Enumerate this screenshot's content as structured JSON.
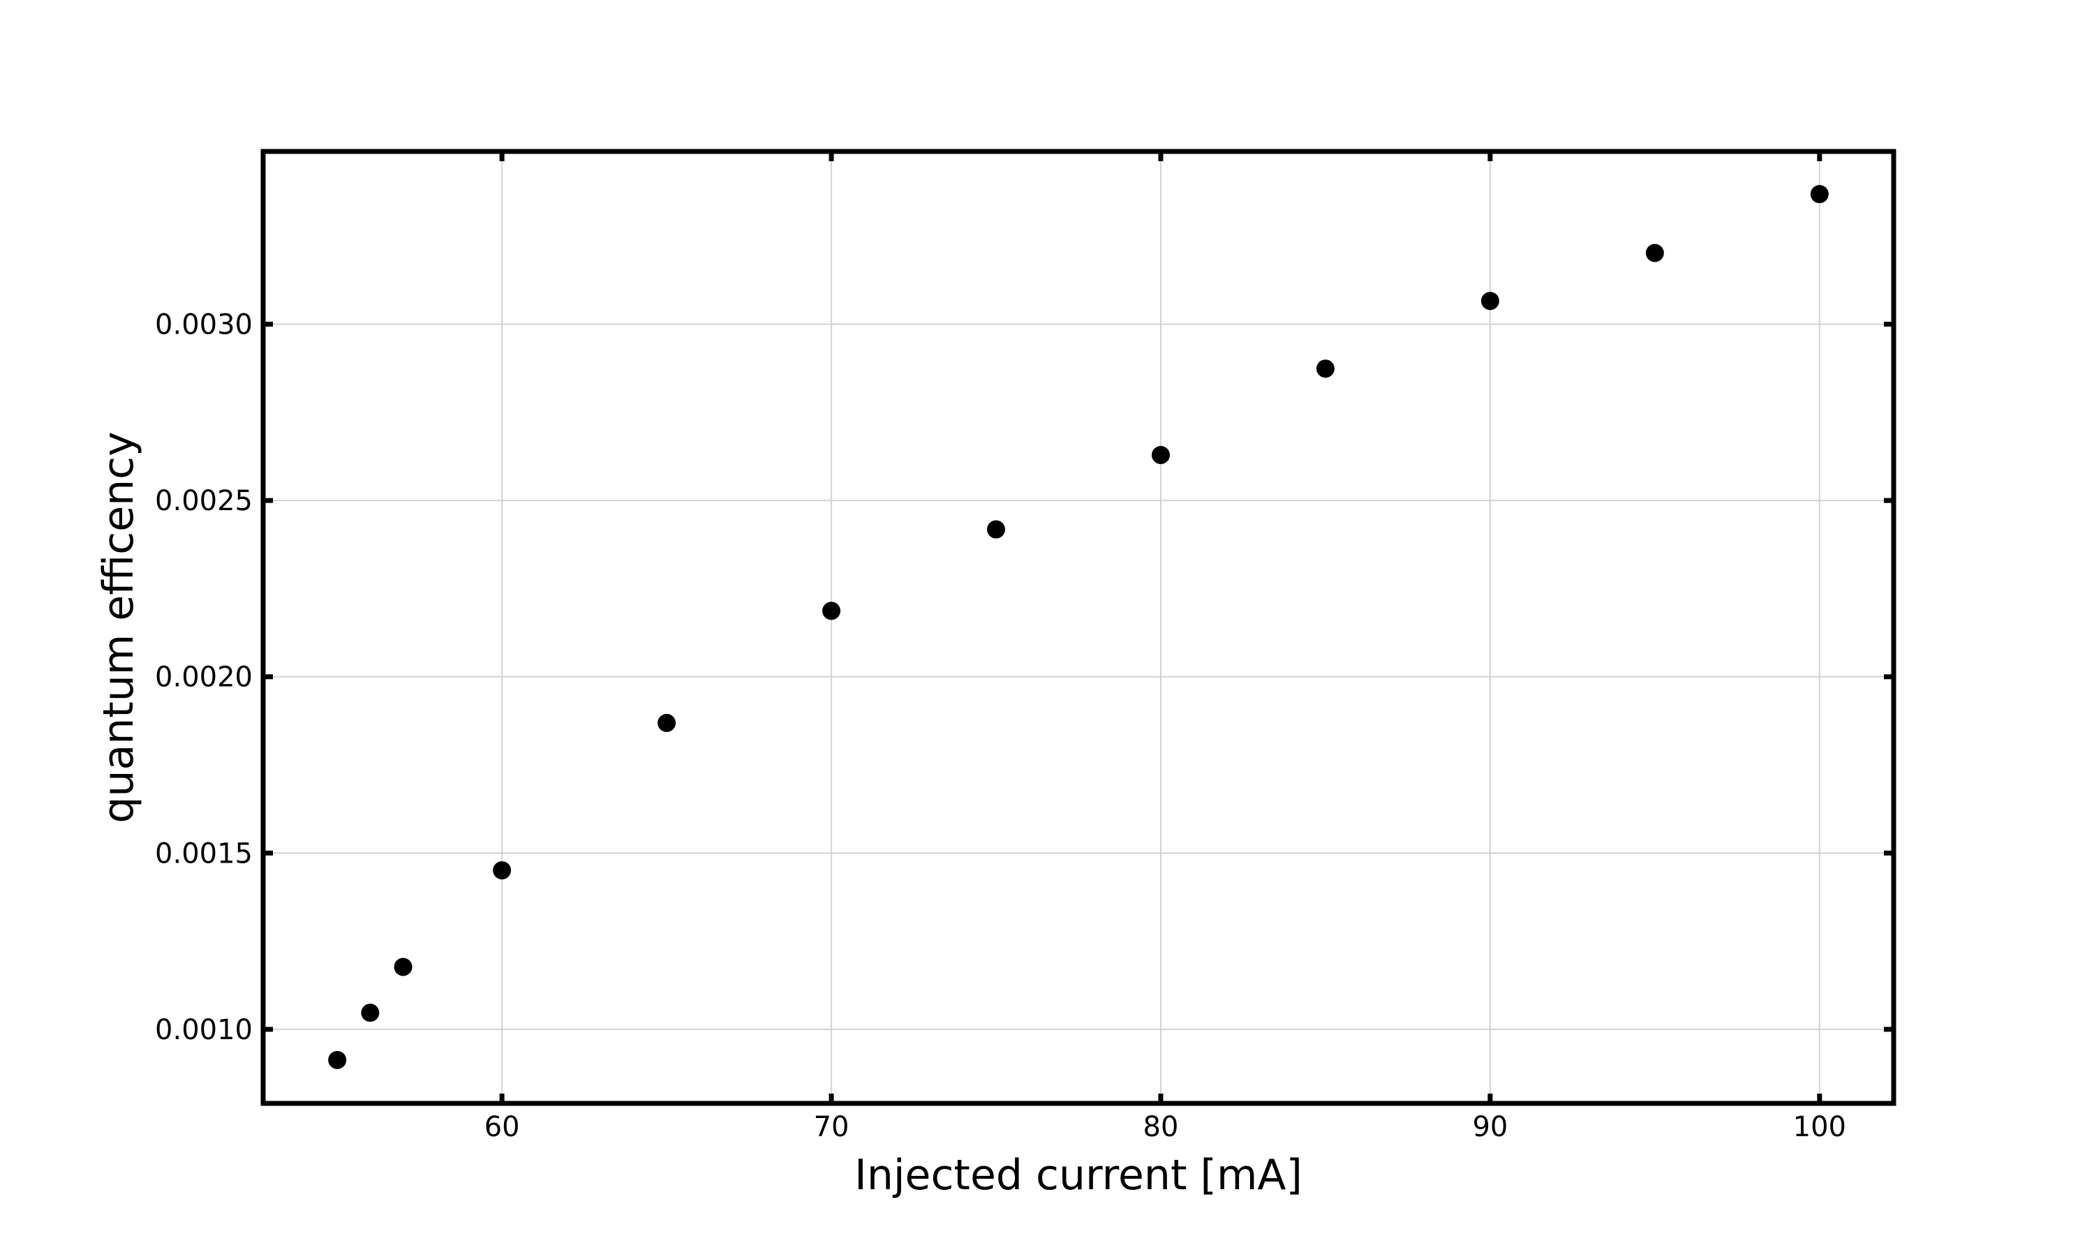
{
  "chart_data": {
    "type": "scatter",
    "title": "",
    "xlabel": "Injected current [mA]",
    "ylabel": "quantum efficency",
    "xlim": [
      52.75,
      102.25
    ],
    "ylim": [
      0.00079,
      0.00349
    ],
    "xticks": [
      60,
      70,
      80,
      90,
      100
    ],
    "xtick_labels": [
      "60",
      "70",
      "80",
      "90",
      "100"
    ],
    "yticks": [
      0.001,
      0.0015,
      0.002,
      0.0025,
      0.003
    ],
    "ytick_labels": [
      "0.0010",
      "0.0015",
      "0.0020",
      "0.0025",
      "0.0030"
    ],
    "grid": true,
    "series": [
      {
        "name": "quantum efficiency",
        "color": "#000000",
        "x": [
          55,
          56,
          57,
          60,
          65,
          70,
          75,
          80,
          85,
          90,
          95,
          100
        ],
        "y": [
          0.000913,
          0.001047,
          0.001177,
          0.001451,
          0.001869,
          0.002187,
          0.002418,
          0.002629,
          0.002874,
          0.003066,
          0.003202,
          0.003369
        ]
      }
    ]
  }
}
